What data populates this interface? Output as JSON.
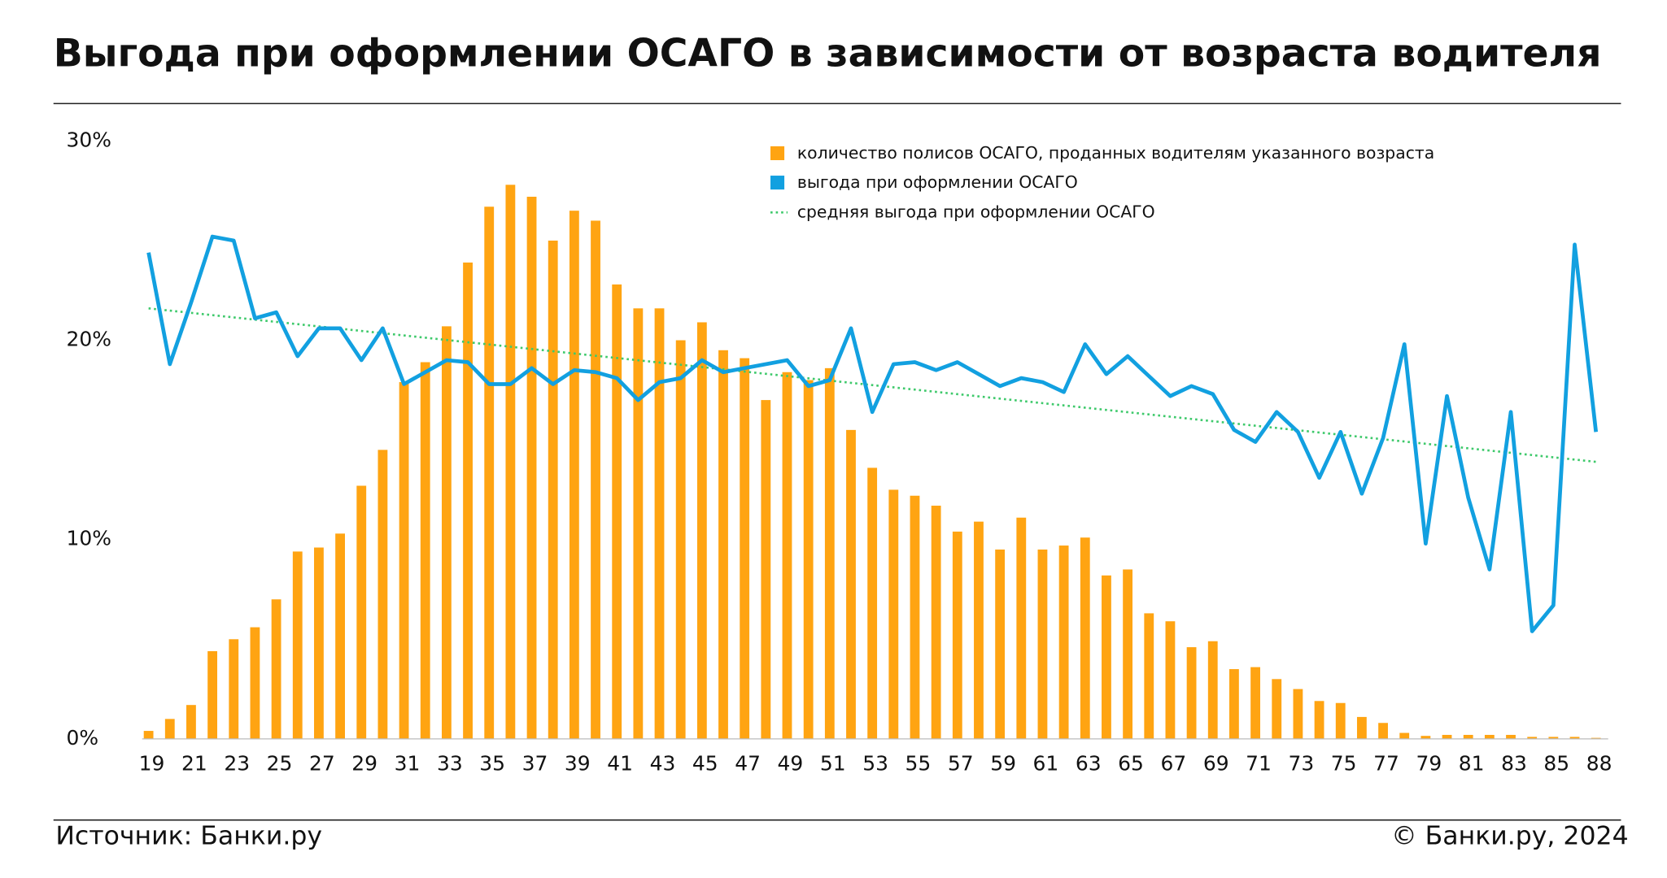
{
  "chart_data": {
    "type": "bar-line",
    "title": "Выгода при оформлении ОСАГО в зависимости от возраста водителя",
    "source": "Источник: Банки.ру",
    "copyright": "© Банки.ру, 2024",
    "categories": [
      "19",
      null,
      "21",
      null,
      "23",
      null,
      "25",
      null,
      "27",
      null,
      "29",
      null,
      "31",
      null,
      "33",
      null,
      "35",
      null,
      "37",
      null,
      "39",
      null,
      "41",
      null,
      "43",
      null,
      "45",
      null,
      "47",
      null,
      "49",
      null,
      "51",
      null,
      "53",
      null,
      "55",
      null,
      "57",
      null,
      "59",
      null,
      "61",
      null,
      "63",
      null,
      "65",
      null,
      "67",
      null,
      "69",
      null,
      "71",
      null,
      "73",
      null,
      "75",
      null,
      "77",
      null,
      "79",
      null,
      "81",
      null,
      "83",
      null,
      "85",
      null,
      "88"
    ],
    "series": [
      {
        "name": "количество полисов ОСАГО, проданных водителям указанного возраста",
        "kind": "bar",
        "color": "#ffa412",
        "values": [
          0.4,
          1.0,
          1.7,
          4.4,
          5.0,
          5.6,
          7.0,
          9.4,
          9.6,
          10.3,
          12.7,
          14.5,
          17.9,
          18.9,
          20.7,
          23.9,
          26.7,
          27.8,
          27.2,
          25.0,
          26.5,
          26.0,
          22.8,
          21.6,
          21.6,
          20.0,
          20.9,
          19.5,
          19.1,
          17.0,
          18.4,
          18.0,
          18.6,
          15.5,
          13.6,
          12.5,
          12.2,
          11.7,
          10.4,
          10.9,
          9.5,
          11.1,
          9.5,
          9.7,
          10.1,
          8.2,
          8.5,
          6.3,
          5.9,
          4.6,
          4.9,
          3.5,
          3.6,
          3.0,
          2.5,
          1.9,
          1.8,
          1.1,
          0.8,
          0.3,
          0.15,
          0.2,
          0.2,
          0.2,
          0.2,
          0.1,
          0.1,
          0.1,
          0.05
        ]
      },
      {
        "name": "выгода при оформлении ОСАГО",
        "kind": "line",
        "color": "#12a0e0",
        "values": [
          24.4,
          18.8,
          21.9,
          25.2,
          25.0,
          21.1,
          21.4,
          19.2,
          20.6,
          20.6,
          19.0,
          20.6,
          17.8,
          18.4,
          19.0,
          18.9,
          17.8,
          17.8,
          18.6,
          17.8,
          18.5,
          18.4,
          18.1,
          17.0,
          17.9,
          18.1,
          19.0,
          18.4,
          18.6,
          18.8,
          19.0,
          17.7,
          18.0,
          20.6,
          16.4,
          18.8,
          18.9,
          18.5,
          18.9,
          18.3,
          17.7,
          18.1,
          17.9,
          17.4,
          19.8,
          18.3,
          19.2,
          18.2,
          17.2,
          17.7,
          17.3,
          15.5,
          14.9,
          16.4,
          15.4,
          13.1,
          15.4,
          12.3,
          15.1,
          19.8,
          9.8,
          17.2,
          12.1,
          8.5,
          16.4,
          5.4,
          6.7,
          24.8,
          15.4
        ]
      }
    ],
    "trend": {
      "name": "средняя выгода при оформлении ОСАГО",
      "color": "#3ec96b",
      "values": [
        21.6,
        13.9
      ]
    },
    "ylim": [
      0,
      30
    ],
    "yticks": [
      {
        "value": 0,
        "label": "0%"
      },
      {
        "value": 10,
        "label": "10%"
      },
      {
        "value": 20,
        "label": "20%"
      },
      {
        "value": 30,
        "label": "30%"
      }
    ]
  }
}
